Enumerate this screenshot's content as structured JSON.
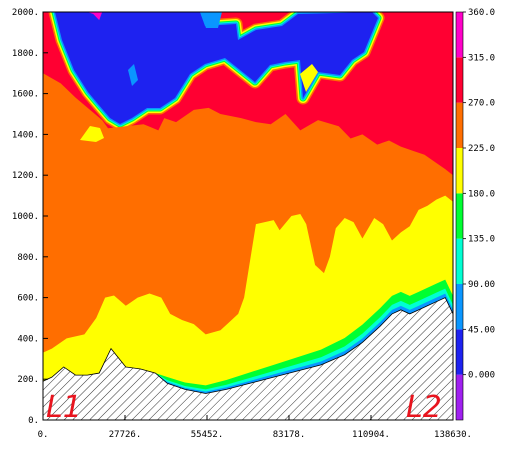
{
  "chart_data": {
    "type": "heatmap",
    "title": "",
    "xlabel": "",
    "ylabel": "",
    "xlim": [
      0,
      138630
    ],
    "ylim": [
      0,
      2000
    ],
    "x_tick_labels": [
      "0.",
      "27726.",
      "55452.",
      "83178.",
      "110904.",
      "138630."
    ],
    "x_tick_values": [
      0,
      27726,
      55452,
      83178,
      110904,
      138630
    ],
    "y_tick_labels": [
      "0.",
      "200.",
      "400.",
      "600.",
      "800.",
      "1000.",
      "1200.",
      "1400.",
      "1600.",
      "1800.",
      "2000."
    ],
    "y_tick_values": [
      0,
      200,
      400,
      600,
      800,
      1000,
      1200,
      1400,
      1600,
      1800,
      2000
    ],
    "colorbar": {
      "labels": [
        "0.000",
        "45.00",
        "90.00",
        "135.0",
        "180.0",
        "225.0",
        "270.0",
        "315.0",
        "360.0"
      ],
      "levels": [
        0,
        45,
        90,
        135,
        180,
        225,
        270,
        315,
        360
      ],
      "colors": [
        "#a020f0",
        "#1e22f0",
        "#0a96ff",
        "#00ffd2",
        "#00ff32",
        "#ffff00",
        "#ff6e00",
        "#ff0032",
        "#ff00c8"
      ]
    },
    "terrain": {
      "x": [
        0,
        3000,
        7000,
        11000,
        15000,
        19000,
        23000,
        28000,
        33000,
        38000,
        42000,
        48000,
        55000,
        62000,
        70000,
        78000,
        86000,
        94000,
        102000,
        108000,
        114000,
        118000,
        121000,
        124000,
        127000,
        130000,
        133000,
        136000,
        138630
      ],
      "y": [
        190,
        210,
        260,
        220,
        220,
        230,
        350,
        260,
        250,
        230,
        180,
        150,
        130,
        150,
        180,
        210,
        240,
        270,
        320,
        380,
        460,
        520,
        540,
        520,
        540,
        560,
        580,
        600,
        520
      ]
    },
    "regions": [
      {
        "level": 270,
        "x": [
          0,
          6000,
          11000,
          20000,
          22000,
          28000,
          34000,
          39000,
          41000,
          45000,
          51000,
          56000,
          60000,
          67000,
          72000,
          77000,
          82000,
          87000,
          93000,
          100000,
          104000,
          108000,
          113000,
          117000,
          121000,
          125000,
          129000,
          133000,
          136000,
          138630
        ],
        "y": [
          1700,
          1650,
          1580,
          1470,
          1430,
          1440,
          1450,
          1420,
          1480,
          1460,
          1520,
          1530,
          1500,
          1480,
          1460,
          1450,
          1500,
          1420,
          1470,
          1440,
          1380,
          1400,
          1350,
          1370,
          1340,
          1320,
          1300,
          1260,
          1230,
          1200
        ]
      },
      {
        "level": 225,
        "x": [
          0,
          3000,
          8000,
          11000,
          14000,
          18000,
          21000,
          24000,
          28000,
          32000,
          36000,
          40000,
          43000,
          47000,
          51000,
          55000,
          60000,
          63000,
          66000,
          68000,
          70000,
          72000,
          75000,
          78000,
          80000,
          84000,
          87000,
          89000,
          92000,
          95000,
          97000,
          99000,
          102000,
          105000,
          108000,
          112000,
          115000,
          118000,
          121000,
          124000,
          127000,
          130000,
          133000,
          136000,
          138630
        ],
        "y": [
          330,
          350,
          400,
          410,
          420,
          500,
          600,
          610,
          560,
          600,
          620,
          600,
          520,
          490,
          470,
          420,
          440,
          480,
          520,
          600,
          780,
          960,
          970,
          980,
          930,
          1000,
          1010,
          960,
          760,
          720,
          800,
          940,
          990,
          970,
          890,
          990,
          960,
          880,
          920,
          950,
          1030,
          1050,
          1080,
          1100,
          1070
        ]
      }
    ],
    "caps": [
      {
        "level": 360,
        "x": [
          15000,
          17000,
          19000,
          20000
        ],
        "y": [
          2000,
          1990,
          1960,
          2000
        ]
      }
    ],
    "markers": [
      "L1",
      "L2"
    ]
  }
}
